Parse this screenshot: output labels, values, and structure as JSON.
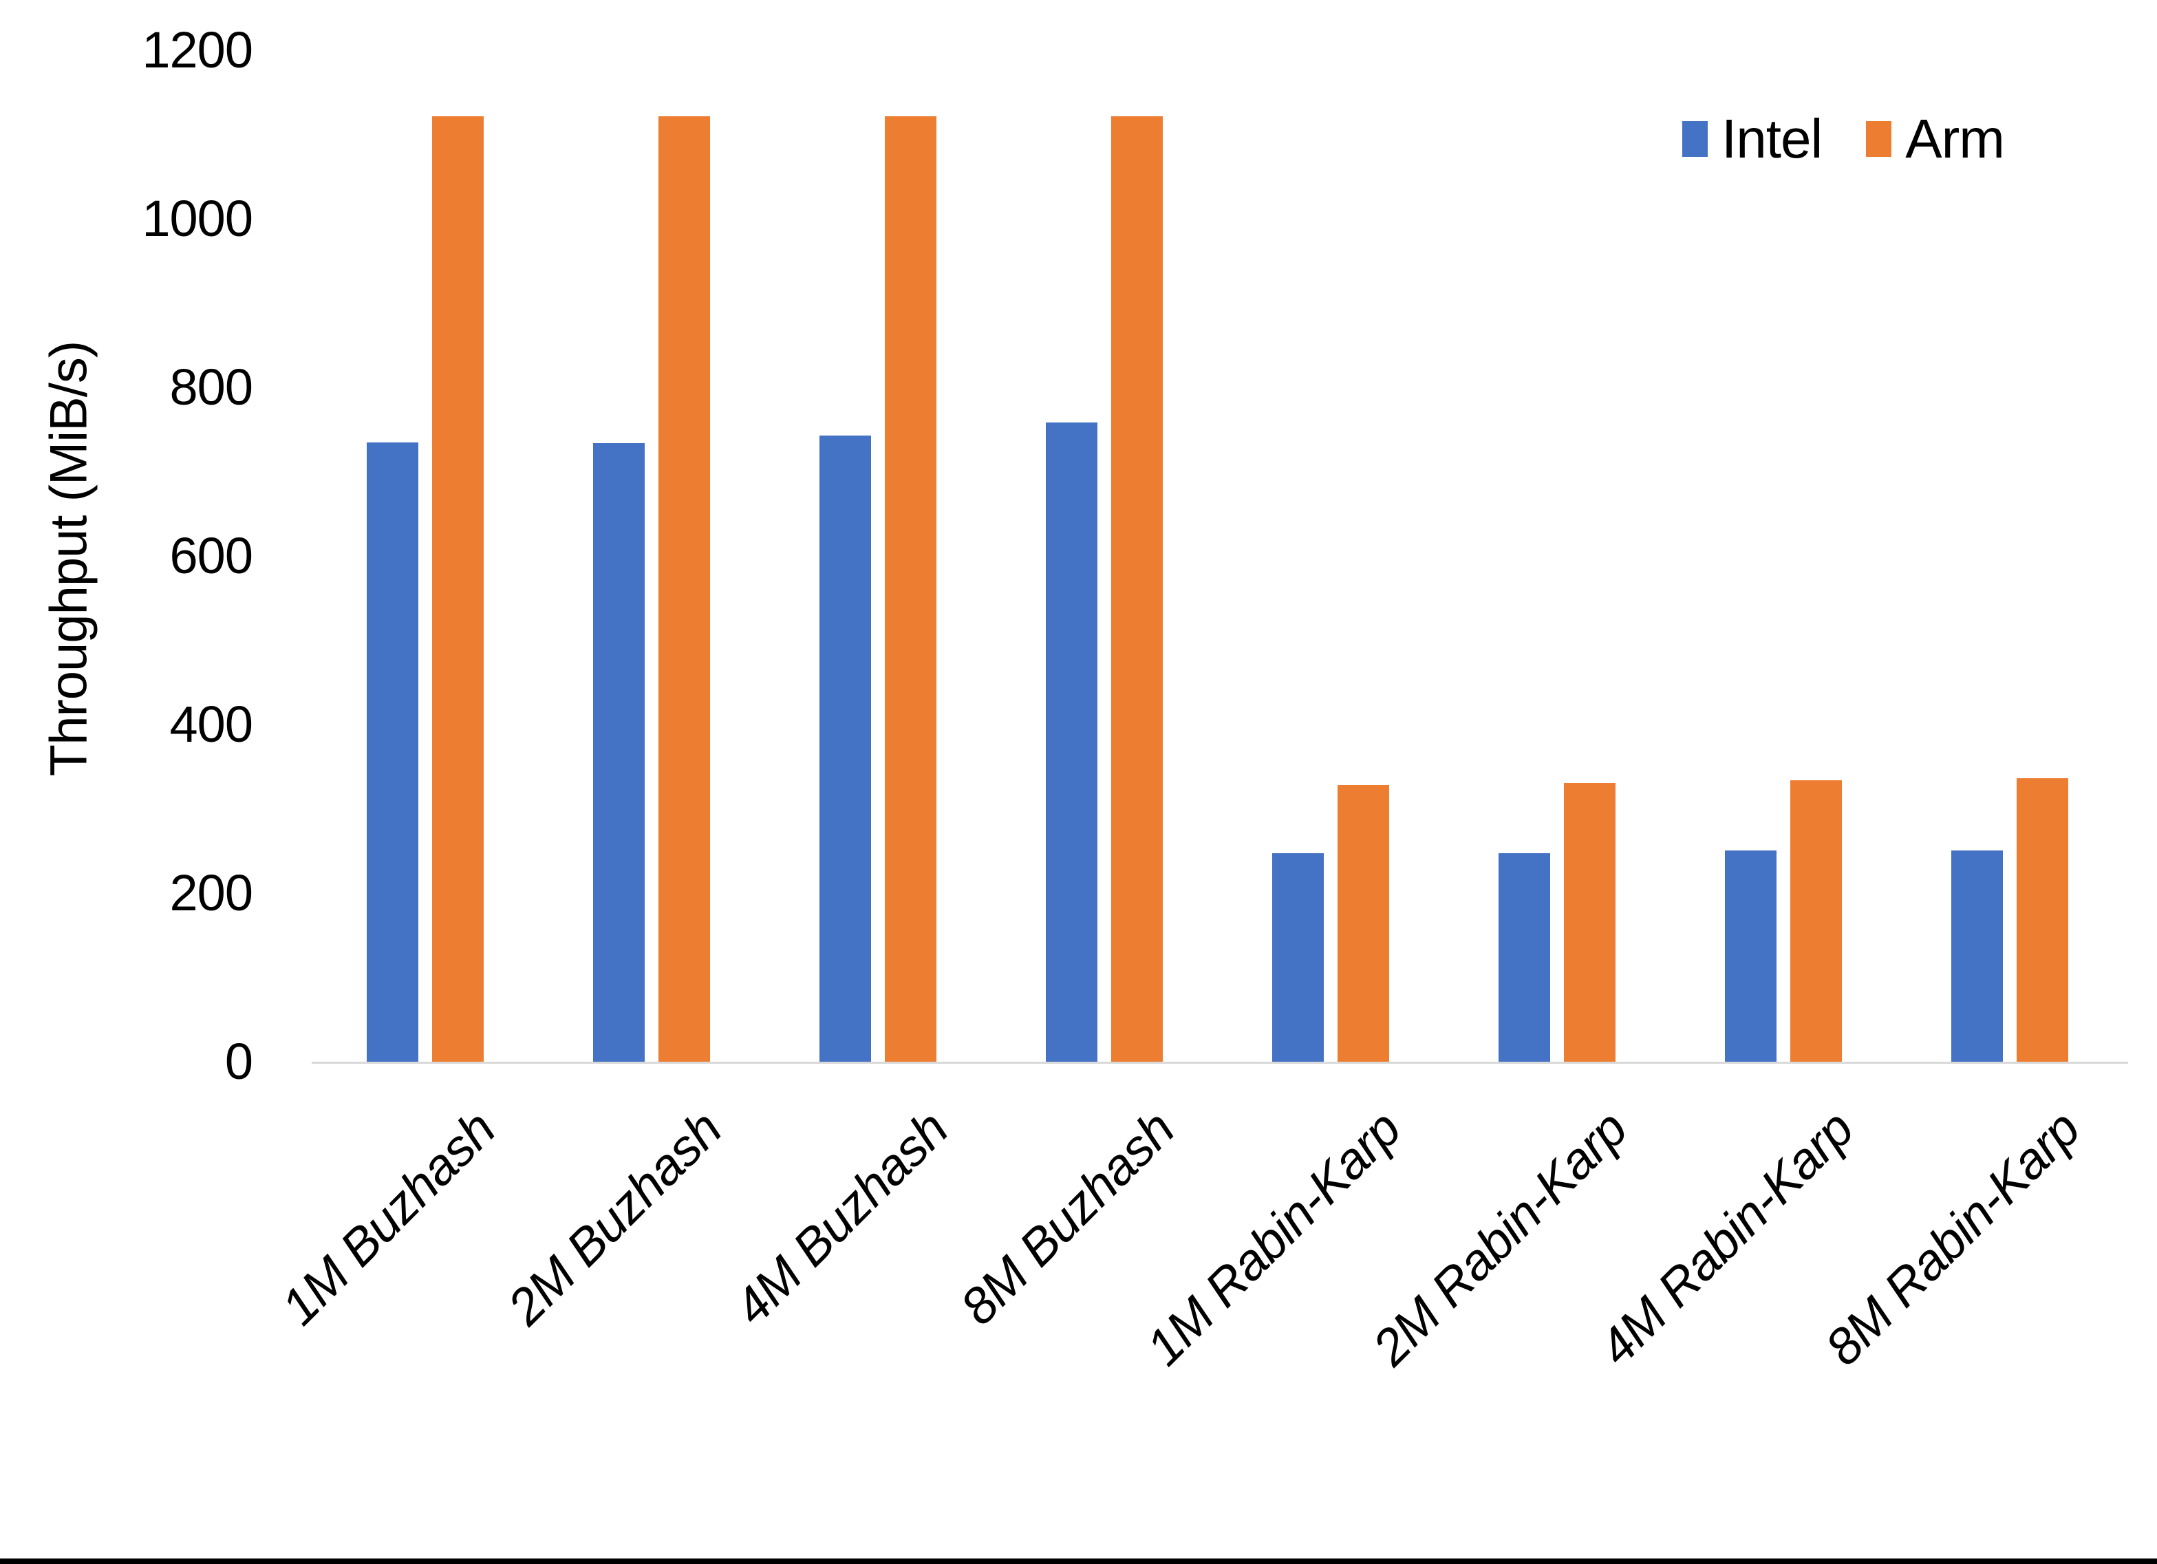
{
  "chart_data": {
    "type": "bar",
    "title": "",
    "xlabel": "",
    "ylabel": "Throughput (MiB/s)",
    "ylim": [
      0,
      1200
    ],
    "ytick_step": 200,
    "ytick_labels": [
      "0",
      "200",
      "400",
      "600",
      "800",
      "1000",
      "1200"
    ],
    "grid": false,
    "legend_position": "top-right",
    "categories": [
      "1M Buzhash",
      "2M Buzhash",
      "4M Buzhash",
      "8M Buzhash",
      "1M Rabin-Karp",
      "2M Rabin-Karp",
      "4M Rabin-Karp",
      "8M Rabin-Karp"
    ],
    "series": [
      {
        "name": "Intel",
        "color": "#4472C4",
        "values": [
          735,
          734,
          743,
          758,
          247,
          247,
          251,
          251
        ]
      },
      {
        "name": "Arm",
        "color": "#ED7D31",
        "values": [
          1122,
          1122,
          1122,
          1122,
          328,
          331,
          334,
          336
        ]
      }
    ]
  },
  "colors": {
    "background": "#FFFFFF",
    "text": "#000000",
    "axis_line": "#D9D9D9",
    "bottom_bar": "#000000"
  }
}
